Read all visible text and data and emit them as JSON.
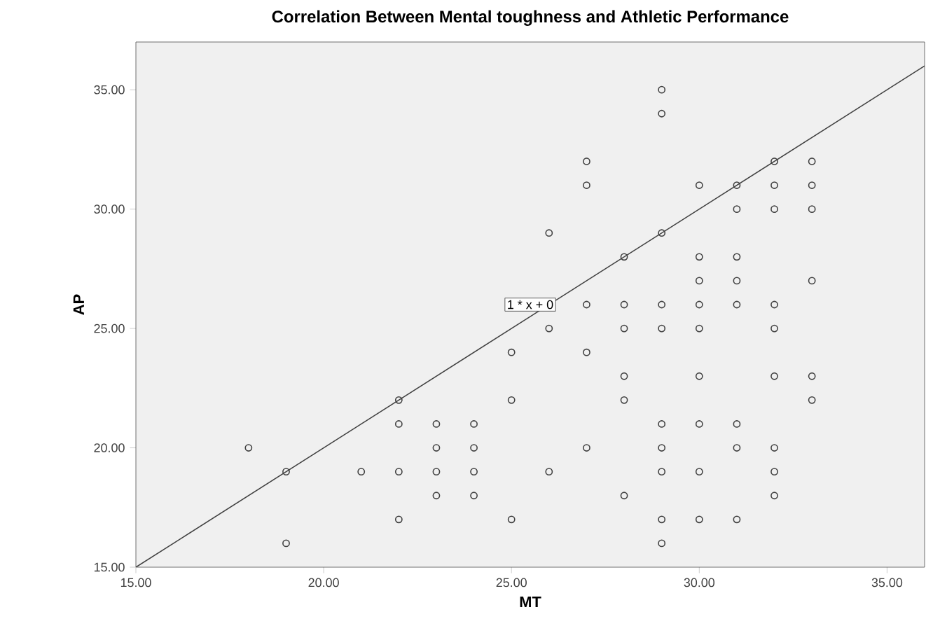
{
  "chart_data": {
    "type": "scatter",
    "title": "Correlation Between Mental toughness and Athletic Performance",
    "xlabel": "MT",
    "ylabel": "AP",
    "xlim": [
      15,
      36
    ],
    "ylim": [
      15,
      37
    ],
    "xticks": [
      {
        "value": 15,
        "label": "15.00"
      },
      {
        "value": 20,
        "label": "20.00"
      },
      {
        "value": 25,
        "label": "25.00"
      },
      {
        "value": 30,
        "label": "30.00"
      },
      {
        "value": 35,
        "label": "35.00"
      }
    ],
    "yticks": [
      {
        "value": 15,
        "label": "15.00"
      },
      {
        "value": 20,
        "label": "20.00"
      },
      {
        "value": 25,
        "label": "25.00"
      },
      {
        "value": 30,
        "label": "30.00"
      },
      {
        "value": 35,
        "label": "35.00"
      }
    ],
    "grid": false,
    "annotations": [
      "1 * x + 0"
    ],
    "series": [
      {
        "marker": "circle",
        "color": "#404040",
        "x": [
          18,
          19,
          19,
          21,
          22,
          22,
          22,
          22,
          23,
          23,
          23,
          23,
          24,
          24,
          24,
          24,
          25,
          25,
          25,
          26,
          26,
          26,
          27,
          27,
          27,
          27,
          27,
          28,
          28,
          28,
          28,
          28,
          28,
          29,
          29,
          29,
          29,
          29,
          29,
          29,
          29,
          29,
          29,
          30,
          30,
          30,
          30,
          30,
          30,
          30,
          30,
          30,
          31,
          31,
          31,
          31,
          31,
          31,
          31,
          31,
          32,
          32,
          32,
          32,
          32,
          32,
          32,
          32,
          32,
          33,
          33,
          33,
          33,
          33,
          33
        ],
        "values": [
          20,
          19,
          16,
          19,
          22,
          21,
          19,
          17,
          21,
          20,
          19,
          18,
          21,
          20,
          19,
          18,
          24,
          22,
          17,
          29,
          25,
          19,
          32,
          31,
          26,
          24,
          20,
          28,
          26,
          25,
          23,
          22,
          18,
          35,
          34,
          29,
          26,
          25,
          21,
          20,
          19,
          17,
          16,
          31,
          28,
          27,
          26,
          25,
          23,
          21,
          19,
          17,
          31,
          30,
          28,
          27,
          26,
          21,
          20,
          17,
          32,
          31,
          30,
          26,
          25,
          23,
          20,
          19,
          18,
          32,
          31,
          30,
          27,
          23,
          22
        ]
      },
      {
        "type": "line",
        "marker": "none",
        "color": "#404040",
        "x": [
          15,
          36
        ],
        "values": [
          15,
          36
        ]
      }
    ]
  }
}
